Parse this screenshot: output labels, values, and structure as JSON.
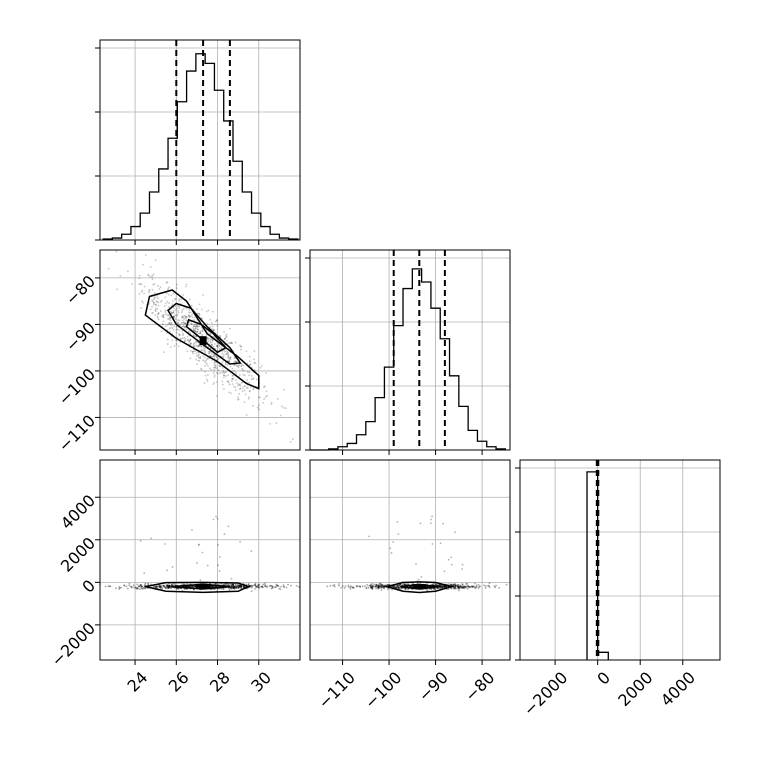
{
  "chart_data": {
    "type": "corner",
    "grid": true,
    "parameters": [
      {
        "range": [
          22.3,
          32.0
        ],
        "ticks": [
          24,
          26,
          28,
          30
        ],
        "tick_labels": [
          "24",
          "26",
          "28",
          "30"
        ],
        "quantiles": [
          26.0,
          27.3,
          28.6
        ]
      },
      {
        "range": [
          -117.0,
          -74.0
        ],
        "ticks": [
          -110,
          -100,
          -90,
          -80
        ],
        "tick_labels": [
          "−110",
          "−100",
          "−90",
          "−80"
        ],
        "quantiles": [
          -99.0,
          -93.5,
          -88.0
        ]
      },
      {
        "range": [
          -3650,
          5750
        ],
        "ticks": [
          -2000,
          0,
          2000,
          4000
        ],
        "tick_labels": [
          "−2000",
          "0",
          "2000",
          "4000"
        ],
        "quantiles": [
          -40,
          0,
          30
        ]
      }
    ],
    "histograms": [
      {
        "param": 0,
        "bins": [
          22.45,
          22.9,
          23.35,
          23.8,
          24.25,
          24.7,
          25.15,
          25.6,
          26.05,
          26.5,
          26.95,
          27.4,
          27.85,
          28.3,
          28.75,
          29.2,
          29.65,
          30.1,
          30.55,
          31.0,
          31.45,
          31.9
        ],
        "counts": [
          0.5,
          1,
          3,
          7,
          14,
          25,
          37,
          53,
          72,
          88,
          97,
          92,
          78,
          62,
          41,
          25,
          14,
          7,
          3,
          1,
          0.5
        ],
        "max": 100
      },
      {
        "param": 1,
        "bins": [
          -117,
          -115,
          -113,
          -111,
          -109,
          -107,
          -105,
          -103,
          -101,
          -99,
          -97,
          -95,
          -93,
          -91,
          -89,
          -87,
          -85,
          -83,
          -81,
          -79,
          -77,
          -75
        ],
        "counts": [
          0,
          0,
          0.5,
          1.5,
          3,
          7,
          13,
          24,
          38,
          57,
          74,
          83,
          77,
          65,
          51,
          34,
          20,
          9,
          4,
          1.5,
          0.5
        ],
        "max": 88
      },
      {
        "param": 2,
        "bins": [
          -500,
          0,
          500
        ],
        "counts": [
          98,
          4
        ],
        "max": 100
      }
    ],
    "scatter_panels": [
      {
        "x_param": 0,
        "y_param": 1,
        "center": [
          27.3,
          -93.5
        ],
        "contours": [
          {
            "level": "outer",
            "fill": "#f4f4f4",
            "polygon": [
              [
                25.8,
                -82.6
              ],
              [
                24.7,
                -84.0
              ],
              [
                24.5,
                -88.0
              ],
              [
                26.0,
                -93.0
              ],
              [
                28.0,
                -98.0
              ],
              [
                29.4,
                -102.7
              ],
              [
                30.0,
                -103.8
              ],
              [
                30.0,
                -101.0
              ],
              [
                29.0,
                -97.0
              ],
              [
                27.5,
                -92.0
              ],
              [
                26.5,
                -85.0
              ]
            ]
          },
          {
            "level": "middle",
            "fill": "#c8c8c8",
            "polygon": [
              [
                26.0,
                -85.5
              ],
              [
                25.6,
                -87.0
              ],
              [
                26.0,
                -90.0
              ],
              [
                27.5,
                -95.0
              ],
              [
                28.6,
                -98.5
              ],
              [
                29.1,
                -98.3
              ],
              [
                28.6,
                -95.0
              ],
              [
                27.5,
                -90.5
              ],
              [
                26.7,
                -86.5
              ]
            ]
          },
          {
            "level": "inner",
            "fill": "#8a8a8a",
            "polygon": [
              [
                26.6,
                -89.0
              ],
              [
                26.5,
                -90.5
              ],
              [
                27.2,
                -93.0
              ],
              [
                28.0,
                -96.0
              ],
              [
                28.4,
                -95.0
              ],
              [
                27.8,
                -92.0
              ],
              [
                27.2,
                -90.0
              ]
            ]
          }
        ],
        "core": {
          "fill": "#000000",
          "at": [
            27.3,
            -93.5
          ]
        }
      },
      {
        "x_param": 0,
        "y_param": 2,
        "center": [
          27.3,
          -200
        ],
        "contours": [
          {
            "level": "outer",
            "fill": "#e6e6e6",
            "polygon": [
              [
                24.5,
                -200
              ],
              [
                25.5,
                -15
              ],
              [
                27.3,
                0
              ],
              [
                29.0,
                -30
              ],
              [
                29.5,
                -200
              ],
              [
                29.0,
                -420
              ],
              [
                27.3,
                -470
              ],
              [
                25.5,
                -420
              ]
            ]
          },
          {
            "level": "inner",
            "fill": "#333333",
            "polygon": [
              [
                25.8,
                -200
              ],
              [
                27.3,
                -90
              ],
              [
                28.6,
                -200
              ],
              [
                27.3,
                -310
              ]
            ]
          }
        ],
        "core": {
          "fill": "#000000",
          "at": [
            27.3,
            -200
          ]
        }
      },
      {
        "x_param": 1,
        "y_param": 2,
        "center": [
          -93.5,
          -200
        ],
        "contours": [
          {
            "level": "outer",
            "fill": "#e6e6e6",
            "polygon": [
              [
                -100.5,
                -200
              ],
              [
                -97.0,
                -10
              ],
              [
                -93.5,
                20
              ],
              [
                -90.0,
                -10
              ],
              [
                -86.5,
                -200
              ],
              [
                -90.0,
                -420
              ],
              [
                -93.5,
                -480
              ],
              [
                -97.0,
                -420
              ]
            ]
          },
          {
            "level": "inner",
            "fill": "#333333",
            "polygon": [
              [
                -97.5,
                -200
              ],
              [
                -93.5,
                -100
              ],
              [
                -89.5,
                -200
              ],
              [
                -93.5,
                -310
              ]
            ]
          }
        ],
        "core": {
          "fill": "#000000",
          "at": [
            -93.5,
            -200
          ]
        }
      }
    ]
  }
}
